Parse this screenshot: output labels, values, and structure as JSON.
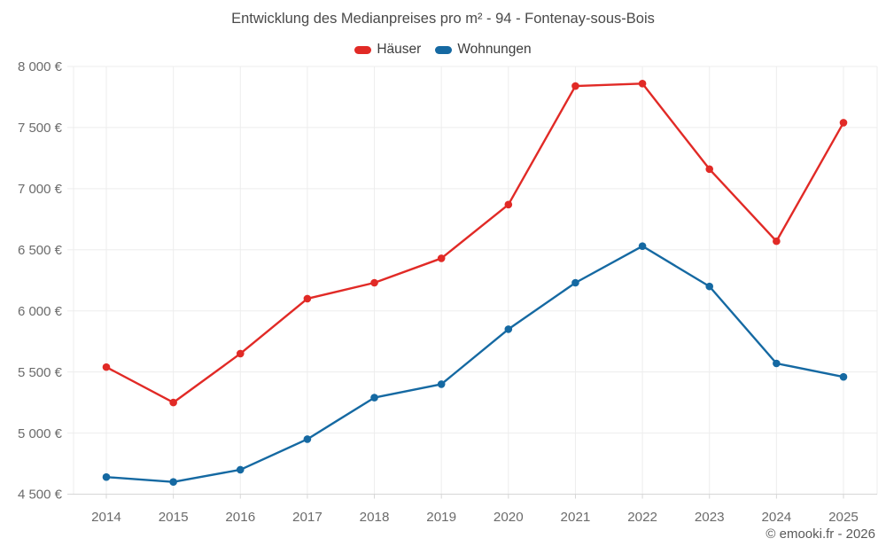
{
  "title": "Entwicklung des Medianpreises pro m² - 94 - Fontenay-sous-Bois",
  "footer": "© emooki.fr - 2026",
  "chart_data": {
    "type": "line",
    "title": "Entwicklung des Medianpreises pro m² - 94 - Fontenay-sous-Bois",
    "categories": [
      "2014",
      "2015",
      "2016",
      "2017",
      "2018",
      "2019",
      "2020",
      "2021",
      "2022",
      "2023",
      "2024",
      "2025"
    ],
    "series": [
      {
        "name": "Häuser",
        "color": "#e12a26",
        "values": [
          5540,
          5250,
          5650,
          6100,
          6230,
          6430,
          6870,
          7840,
          7860,
          7160,
          6570,
          7540
        ]
      },
      {
        "name": "Wohnungen",
        "color": "#1569a2",
        "values": [
          4640,
          4600,
          4700,
          4950,
          5290,
          5400,
          5850,
          6230,
          6530,
          6200,
          5570,
          5460
        ]
      }
    ],
    "xlabel": "",
    "ylabel": "",
    "ylim": [
      4500,
      8000
    ],
    "y_ticks": [
      {
        "value": 4500,
        "label": "4 500 €"
      },
      {
        "value": 5000,
        "label": "5 000 €"
      },
      {
        "value": 5500,
        "label": "5 500 €"
      },
      {
        "value": 6000,
        "label": "6 000 €"
      },
      {
        "value": 6500,
        "label": "6 500 €"
      },
      {
        "value": 7000,
        "label": "7 000 €"
      },
      {
        "value": 7500,
        "label": "7 500 €"
      },
      {
        "value": 8000,
        "label": "8 000 €"
      }
    ],
    "grid": true,
    "legend_position": "top",
    "colors": {
      "gridline": "#ededed",
      "axis": "#d6d6d6",
      "tick_label": "#6b6b6b",
      "title_text": "#4a4a4a",
      "footer_text": "#595959"
    }
  }
}
